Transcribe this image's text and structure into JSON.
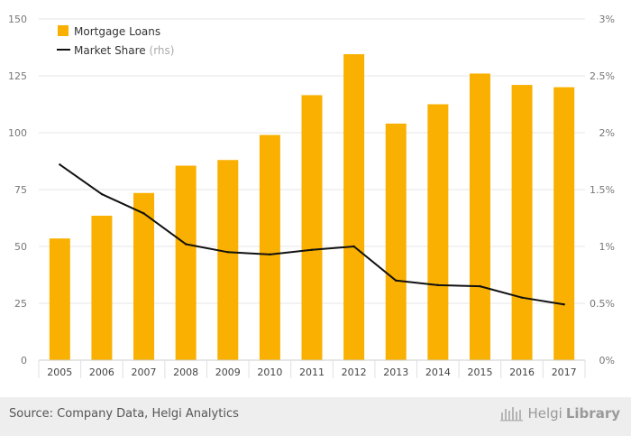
{
  "chart_data": {
    "type": "bar",
    "categories": [
      "2005",
      "2006",
      "2007",
      "2008",
      "2009",
      "2010",
      "2011",
      "2012",
      "2013",
      "2014",
      "2015",
      "2016",
      "2017"
    ],
    "series": [
      {
        "name": "Mortgage Loans",
        "type": "bar",
        "axis": "left",
        "color": "#f9b000",
        "values": [
          53.5,
          63.5,
          73.5,
          85.5,
          88,
          99,
          116.5,
          134.5,
          104,
          112.5,
          126,
          121,
          120
        ]
      },
      {
        "name": "Market Share",
        "type": "line",
        "axis": "right",
        "color": "#111111",
        "values": [
          1.72,
          1.46,
          1.29,
          1.02,
          0.95,
          0.93,
          0.97,
          1.0,
          0.7,
          0.66,
          0.65,
          0.55,
          0.49
        ]
      }
    ],
    "legend": {
      "position": "top-left",
      "items": [
        {
          "label": "Mortgage Loans",
          "suffix": ""
        },
        {
          "label": "Market Share",
          "suffix": "(rhs)"
        }
      ]
    },
    "ylim": [
      0,
      150
    ],
    "y_ticks": [
      "0",
      "25",
      "50",
      "75",
      "100",
      "125",
      "150"
    ],
    "y2lim": [
      0,
      3
    ],
    "y2_ticks": [
      "0%",
      "0.5%",
      "1%",
      "1.5%",
      "2%",
      "2.5%",
      "3%"
    ],
    "grid": true
  },
  "footer": {
    "source": "Source: Company Data, Helgi Analytics",
    "brand_light": "Helgi",
    "brand_bold": "Library"
  },
  "colors": {
    "bar": "#f9b000",
    "line": "#111111",
    "grid": "#e6e6e6",
    "axis_text": "#777777",
    "footer_bg": "#eeeeee"
  }
}
